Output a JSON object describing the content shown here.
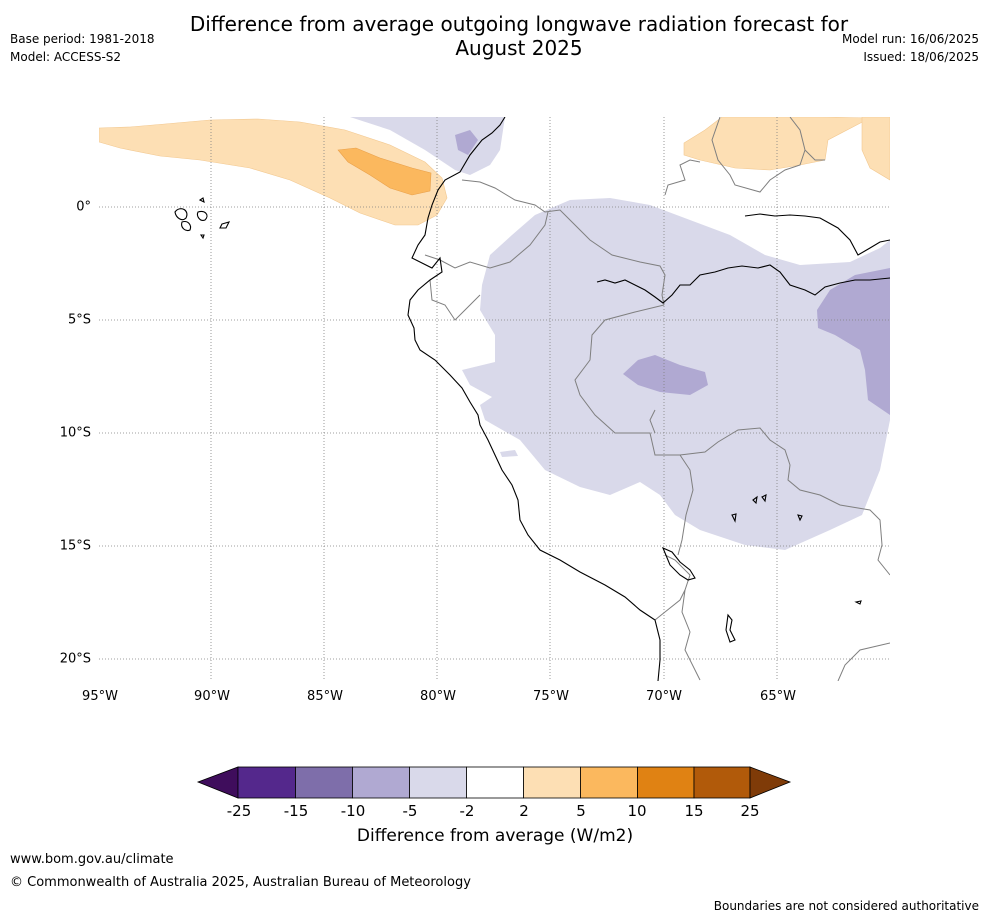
{
  "header": {
    "title_line1": "Difference from average outgoing longwave radiation forecast for",
    "title_line2": "August 2025",
    "base_period": "Base period: 1981-2018",
    "model": "Model: ACCESS-S2",
    "model_run": "Model run: 16/06/2025",
    "issued": "Issued: 18/06/2025"
  },
  "map": {
    "lon_labels": [
      "95°W",
      "90°W",
      "85°W",
      "80°W",
      "75°W",
      "70°W",
      "65°W"
    ],
    "lat_labels": [
      "0°",
      "5°S",
      "10°S",
      "15°S",
      "20°S"
    ],
    "colors": {
      "light_orange": "#fddfb4",
      "mid_orange": "#fbb85e",
      "light_purple": "#d9d9ea",
      "mid_purple": "#b0a9d2",
      "coast": "#000000",
      "border": "#7f7f7f",
      "grid": "#808080"
    }
  },
  "legend": {
    "title": "Difference from average (W/m2)",
    "ticks": [
      "-25",
      "-15",
      "-10",
      "-5",
      "-2",
      "2",
      "5",
      "10",
      "15",
      "25"
    ],
    "colors": [
      "#3f0d5c",
      "#54288c",
      "#7e6eaa",
      "#b0a9d2",
      "#d9d9ea",
      "#ffffff",
      "#fddfb4",
      "#fbb85e",
      "#e08213",
      "#b15a0a",
      "#7f3b08"
    ]
  },
  "footer": {
    "website": "www.bom.gov.au/climate",
    "copyright": "© Commonwealth of Australia 2025, Australian Bureau of Meteorology",
    "disclaimer": "Boundaries are not considered authoritative"
  }
}
